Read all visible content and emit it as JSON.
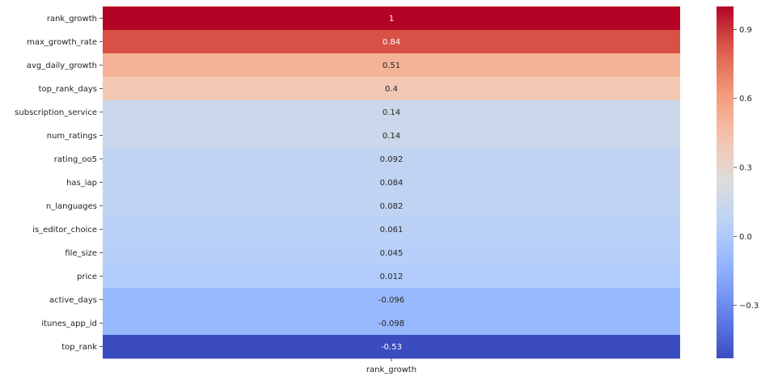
{
  "chart_data": {
    "type": "heatmap",
    "column": "rank_growth",
    "rows": [
      {
        "label": "rank_growth",
        "value": 1,
        "text": "1"
      },
      {
        "label": "max_growth_rate",
        "value": 0.84,
        "text": "0.84"
      },
      {
        "label": "avg_daily_growth",
        "value": 0.51,
        "text": "0.51"
      },
      {
        "label": "top_rank_days",
        "value": 0.4,
        "text": "0.4"
      },
      {
        "label": "subscription_service",
        "value": 0.14,
        "text": "0.14"
      },
      {
        "label": "num_ratings",
        "value": 0.14,
        "text": "0.14"
      },
      {
        "label": "rating_oo5",
        "value": 0.092,
        "text": "0.092"
      },
      {
        "label": "has_iap",
        "value": 0.084,
        "text": "0.084"
      },
      {
        "label": "n_languages",
        "value": 0.082,
        "text": "0.082"
      },
      {
        "label": "is_editor_choice",
        "value": 0.061,
        "text": "0.061"
      },
      {
        "label": "file_size",
        "value": 0.045,
        "text": "0.045"
      },
      {
        "label": "price",
        "value": 0.012,
        "text": "0.012"
      },
      {
        "label": "active_days",
        "value": -0.096,
        "text": "-0.096"
      },
      {
        "label": "itunes_app_id",
        "value": -0.098,
        "text": "-0.098"
      },
      {
        "label": "top_rank",
        "value": -0.53,
        "text": "-0.53"
      }
    ],
    "colormap": "coolwarm",
    "vmin": -0.53,
    "vmax": 1,
    "colorbar": {
      "ticks": [
        0.9,
        0.6,
        0.3,
        0.0,
        -0.3
      ],
      "tick_labels": [
        "0.9",
        "0.6",
        "0.3",
        "0.0",
        "−0.3"
      ]
    }
  }
}
